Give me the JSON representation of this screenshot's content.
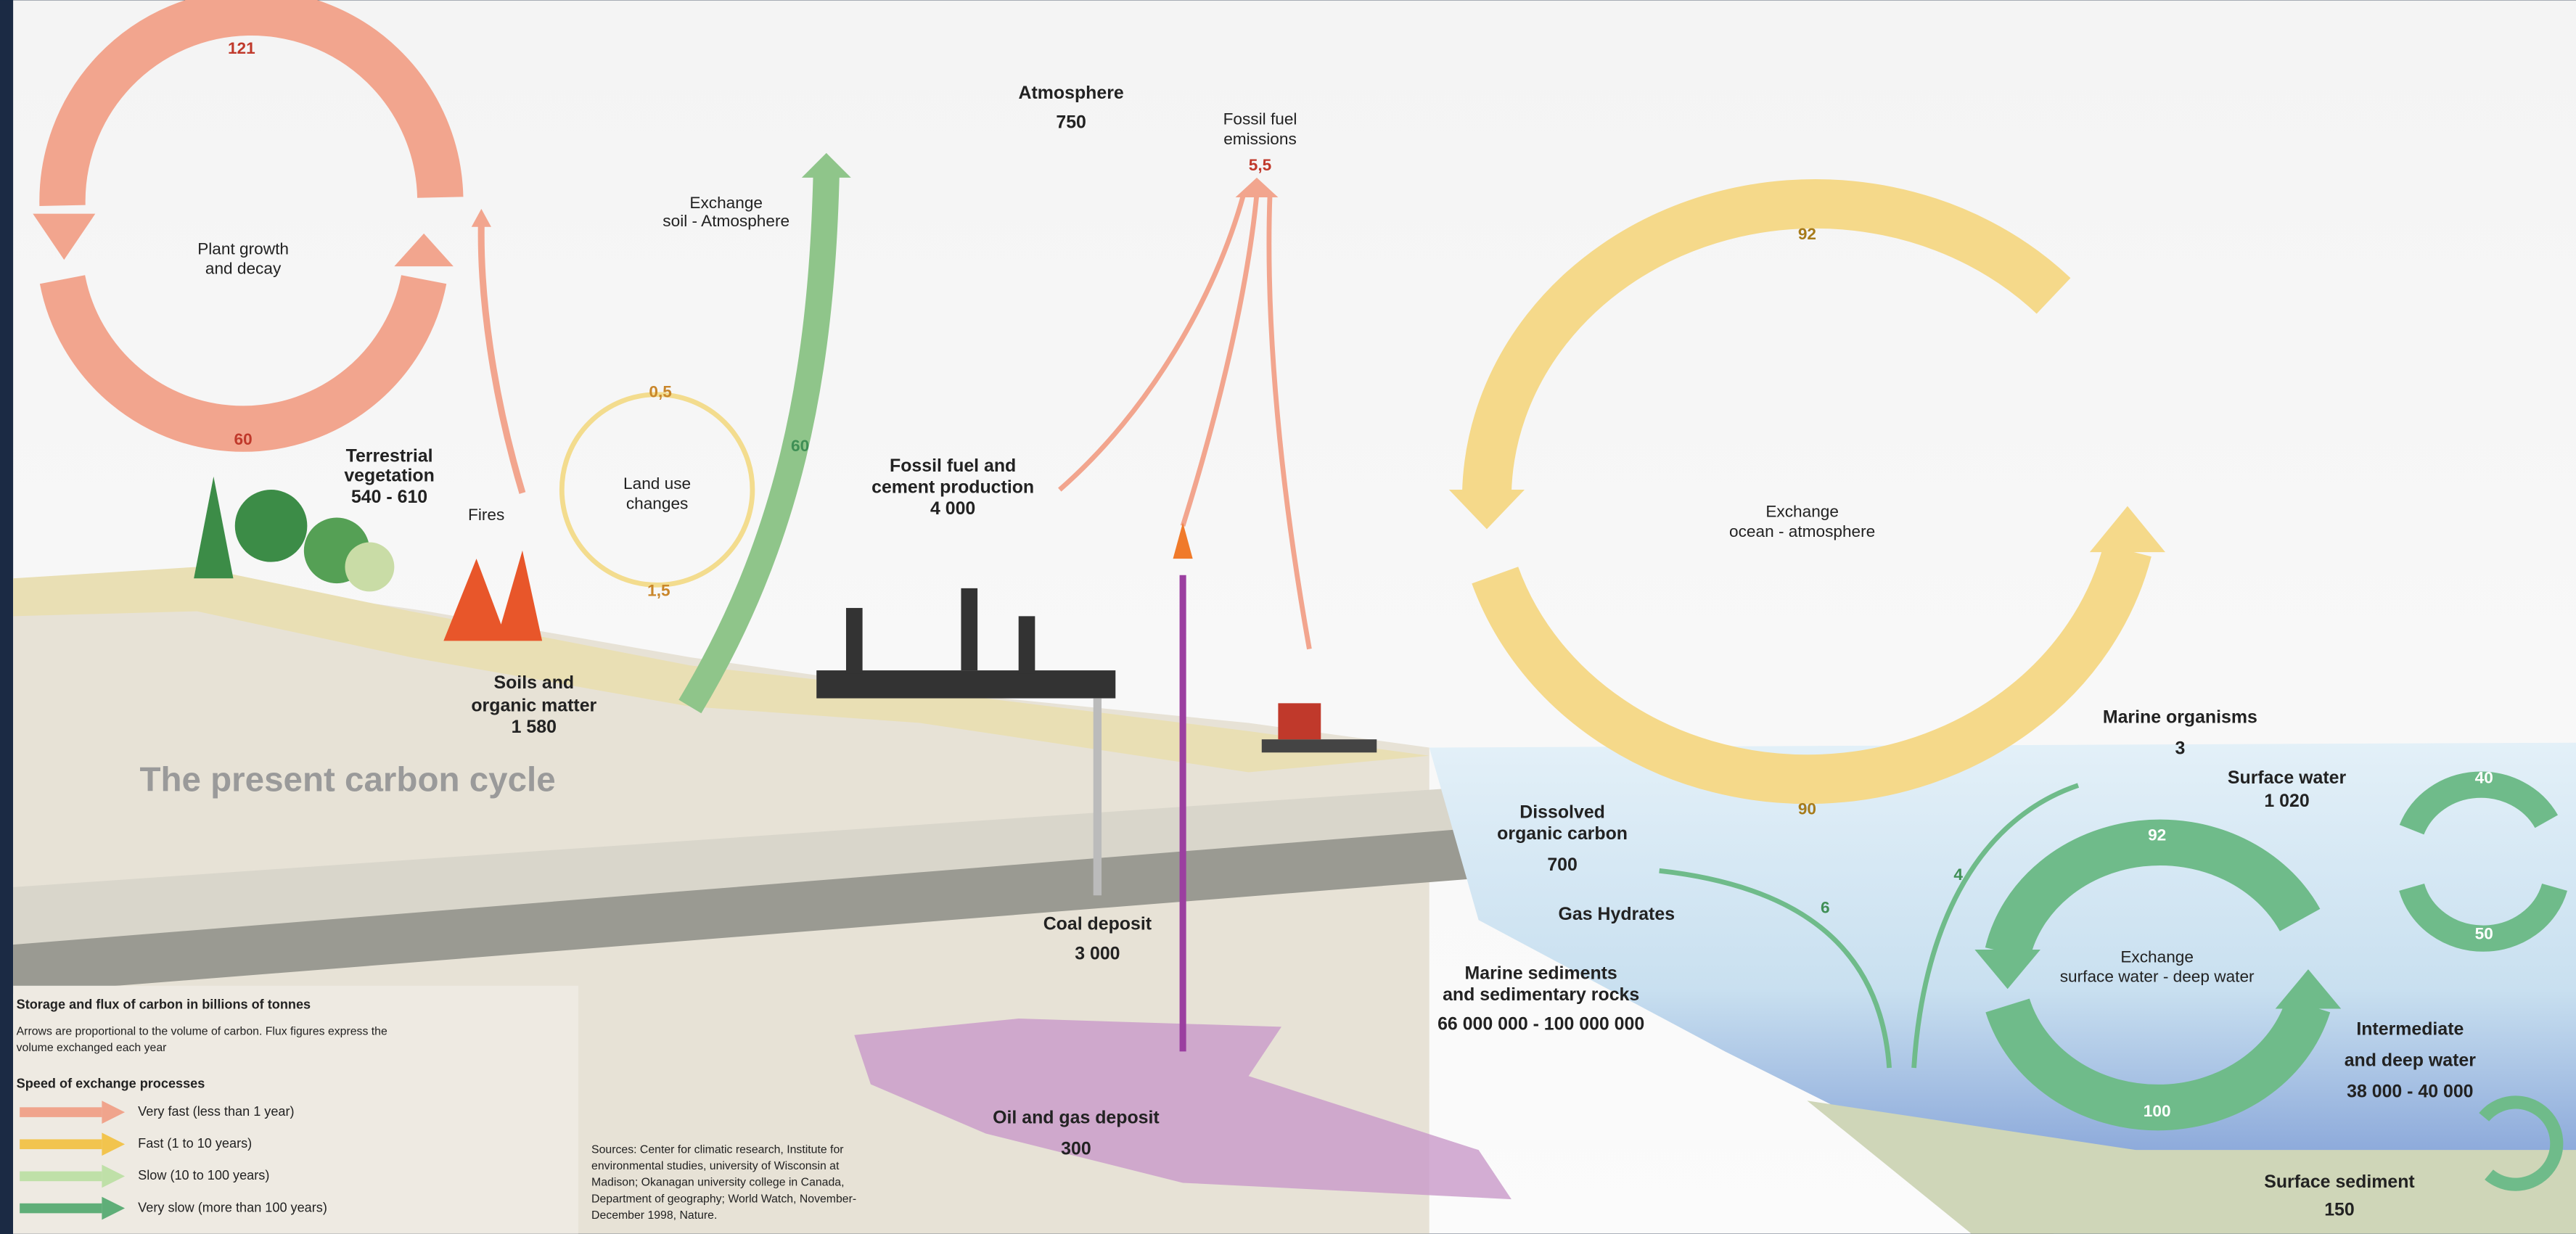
{
  "title": "The present carbon cycle",
  "plant_cycle": {
    "label": [
      "Plant growth",
      "and decay"
    ],
    "flux_up": "121",
    "flux_down": "60"
  },
  "terrestrial_vegetation": {
    "label": [
      "Terrestrial",
      "vegetation"
    ],
    "value": "540 - 610"
  },
  "fires": "Fires",
  "soil_exchange": {
    "label": [
      "Exchange",
      "soil - Atmosphere"
    ],
    "flux": "60"
  },
  "land_use": {
    "label": [
      "Land use",
      "changes"
    ],
    "flux_top": "0,5",
    "flux_bottom": "1,5"
  },
  "soils": {
    "label": [
      "Soils and",
      "organic matter"
    ],
    "value": "1 580"
  },
  "atmosphere": {
    "label": "Atmosphere",
    "value": "750"
  },
  "fossil_emissions": {
    "label": [
      "Fossil fuel",
      "emissions"
    ],
    "value": "5,5"
  },
  "fossil_production": {
    "label": [
      "Fossil fuel and",
      "cement production"
    ],
    "value": "4 000"
  },
  "ocean_exchange": {
    "label": [
      "Exchange",
      "ocean - atmosphere"
    ],
    "flux_down": "92",
    "flux_up": "90"
  },
  "marine_organisms": {
    "label": "Marine organisms",
    "value": "3"
  },
  "surface_water": {
    "label": "Surface water",
    "value": "1 020",
    "flux_up": "40",
    "flux_down": "50"
  },
  "dissolved_organic_carbon": {
    "label": [
      "Dissolved",
      "organic carbon"
    ],
    "value": "700",
    "flux": "6"
  },
  "gas_hydrates": "Gas Hydrates",
  "organisms_flux": "4",
  "deep_exchange": {
    "label": [
      "Exchange",
      "surface water - deep water"
    ],
    "flux_down": "92",
    "flux_up": "100"
  },
  "coal_deposit": {
    "label": "Coal deposit",
    "value": "3 000"
  },
  "marine_sediments": {
    "label": [
      "Marine sediments",
      "and sedimentary rocks"
    ],
    "value": "66 000 000 - 100 000 000"
  },
  "deep_water": {
    "label": [
      "Intermediate",
      "and deep water"
    ],
    "value": "38 000 - 40 000"
  },
  "oil_gas_deposit": {
    "label": "Oil and gas deposit",
    "value": "300"
  },
  "surface_sediment": {
    "label": "Surface sediment",
    "value": "150"
  },
  "legend": {
    "heading": "Storage and flux of carbon in billions of tonnes",
    "note": [
      "Arrows are proportional to the volume of carbon. Flux figures express the",
      "volume exchanged each year"
    ],
    "speed_heading": "Speed of exchange processes",
    "items": [
      {
        "label": "Very fast (less than 1 year)",
        "color": "#f0a48c"
      },
      {
        "label": "Fast (1 to 10 years)",
        "color": "#f2c44e"
      },
      {
        "label": "Slow (10 to 100 years)",
        "color": "#bfe0a8"
      },
      {
        "label": "Very slow (more than 100 years)",
        "color": "#5fae78"
      }
    ]
  },
  "sources": [
    "Sources: Center for climatic research, Institute for",
    "environmental studies, university of Wisconsin at",
    "Madison;  Okanagan university college in Canada,",
    "Department of geography; World Watch, November-",
    "December 1998, Nature."
  ]
}
